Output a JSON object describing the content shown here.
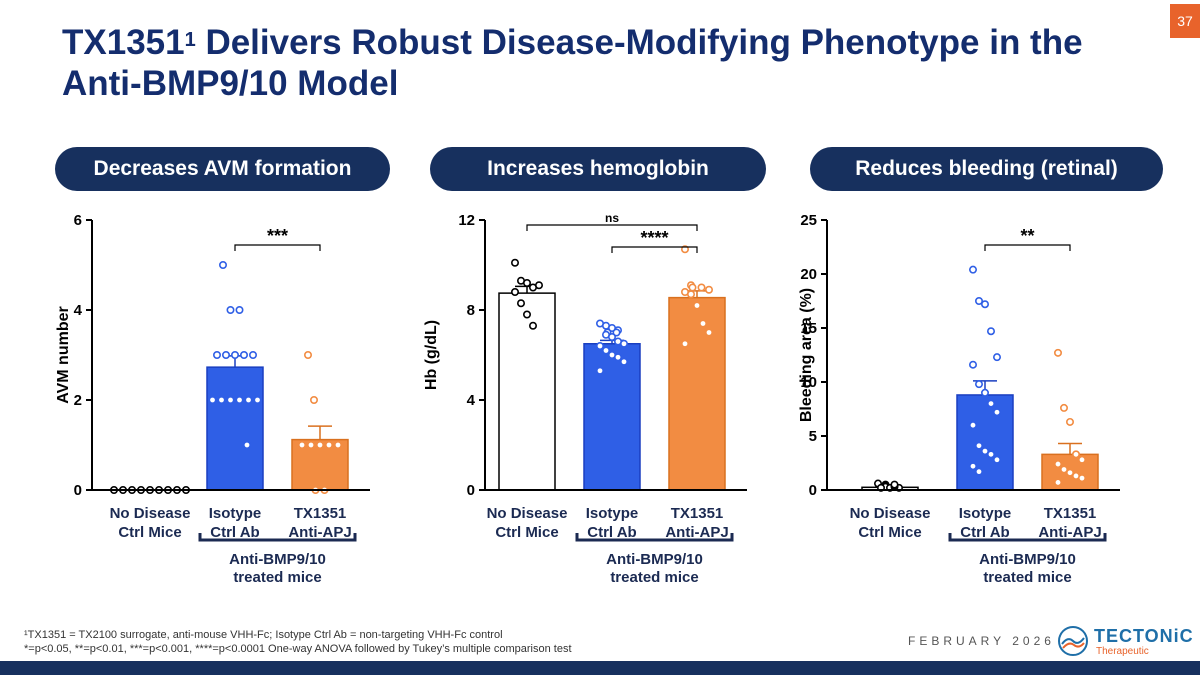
{
  "title": {
    "main": "TX1351",
    "sup": "1",
    "rest": " Delivers Robust Disease-Modifying Phenotype in the Anti-BMP9/10 Model"
  },
  "page_number": "37",
  "pills": [
    "Decreases AVM formation",
    "Increases hemoglobin",
    "Reduces bleeding (retinal)"
  ],
  "footnotes": [
    "¹TX1351 = TX2100 surrogate, anti-mouse VHH-Fc; Isotype Ctrl Ab = non-targeting VHH-Fc control",
    "*=p<0.05, **=p<0.01, ***=p<0.001, ****=p<0.0001 One-way ANOVA followed by Tukey’s multiple comparison test"
  ],
  "date": "FEBRUARY 2026",
  "logo": {
    "name": "TECTONiC",
    "sub": "Therapeutic"
  },
  "colors": {
    "navy": "#17305e",
    "blue": "#2f5fe6",
    "orange": "#f28c42",
    "accent": "#e8632b"
  },
  "chart_data": [
    {
      "type": "bar",
      "title": "Decreases AVM formation",
      "ylabel": "AVM number",
      "ylim": [
        0,
        6
      ],
      "yticks": [
        0,
        2,
        4,
        6
      ],
      "categories": [
        "No Disease\nCtrl Mice",
        "Isotype\nCtrl Ab",
        "TX1351\nAnti-APJ"
      ],
      "values": [
        0,
        2.73,
        1.12
      ],
      "sem": [
        0,
        0.25,
        0.3
      ],
      "points": [
        [
          0,
          0,
          0,
          0,
          0,
          0,
          0,
          0,
          0
        ],
        [
          5,
          4,
          4,
          3,
          3,
          3,
          3,
          3,
          2,
          2,
          2,
          2,
          2,
          2,
          1
        ],
        [
          3,
          2,
          1,
          1,
          1,
          1,
          1,
          0,
          0
        ]
      ],
      "colors": [
        "#ffffff",
        "#2f5fe6",
        "#f28c42"
      ],
      "significance": [
        {
          "from": 1,
          "to": 2,
          "label": "***"
        }
      ],
      "group_label": "Anti-BMP9/10\ntreated mice"
    },
    {
      "type": "bar",
      "title": "Increases hemoglobin",
      "ylabel": "Hb (g/dL)",
      "ylim": [
        0,
        12
      ],
      "yticks": [
        0,
        4,
        8,
        12
      ],
      "categories": [
        "No Disease\nCtrl Mice",
        "Isotype\nCtrl Ab",
        "TX1351\nAnti-APJ"
      ],
      "values": [
        8.75,
        6.5,
        8.55
      ],
      "sem": [
        0.3,
        0.15,
        0.3
      ],
      "points": [
        [
          10.1,
          9.3,
          9.2,
          9.0,
          9.1,
          8.8,
          8.3,
          7.8,
          7.3
        ],
        [
          7.4,
          7.3,
          7.2,
          7.1,
          7.0,
          7.0,
          6.9,
          6.8,
          6.6,
          6.5,
          6.4,
          6.2,
          6.0,
          5.9,
          5.7,
          5.3
        ],
        [
          10.7,
          9.1,
          9.0,
          9.0,
          8.9,
          8.8,
          8.7,
          8.2,
          7.4,
          7.0,
          6.5
        ]
      ],
      "colors": [
        "#ffffff",
        "#2f5fe6",
        "#f28c42"
      ],
      "significance": [
        {
          "from": 0,
          "to": 2,
          "label": "ns"
        },
        {
          "from": 1,
          "to": 2,
          "label": "****"
        }
      ],
      "group_label": "Anti-BMP9/10\ntreated mice"
    },
    {
      "type": "bar",
      "title": "Reduces bleeding (retinal)",
      "ylabel": "Bleeding area (%)",
      "ylim": [
        0,
        25
      ],
      "yticks": [
        0,
        5,
        10,
        15,
        20,
        25
      ],
      "categories": [
        "No Disease\nCtrl Mice",
        "Isotype\nCtrl Ab",
        "TX1351\nAnti-APJ"
      ],
      "values": [
        0.25,
        8.8,
        3.3
      ],
      "sem": [
        0.1,
        1.3,
        1.0
      ],
      "points": [
        [
          0.6,
          0.5,
          0.4,
          0.3,
          0.2,
          0.2,
          0.2,
          0.3,
          0.4,
          0.5
        ],
        [
          20.4,
          17.5,
          17.2,
          14.7,
          12.3,
          11.6,
          9.8,
          9.0,
          8.0,
          7.2,
          6.0,
          4.1,
          3.6,
          3.3,
          2.8,
          2.2,
          1.7
        ],
        [
          12.7,
          7.6,
          6.3,
          3.3,
          2.8,
          2.4,
          1.9,
          1.6,
          1.3,
          1.1,
          0.7
        ]
      ],
      "colors": [
        "#ffffff",
        "#2f5fe6",
        "#f28c42"
      ],
      "significance": [
        {
          "from": 1,
          "to": 2,
          "label": "**"
        }
      ],
      "group_label": "Anti-BMP9/10\ntreated mice"
    }
  ]
}
